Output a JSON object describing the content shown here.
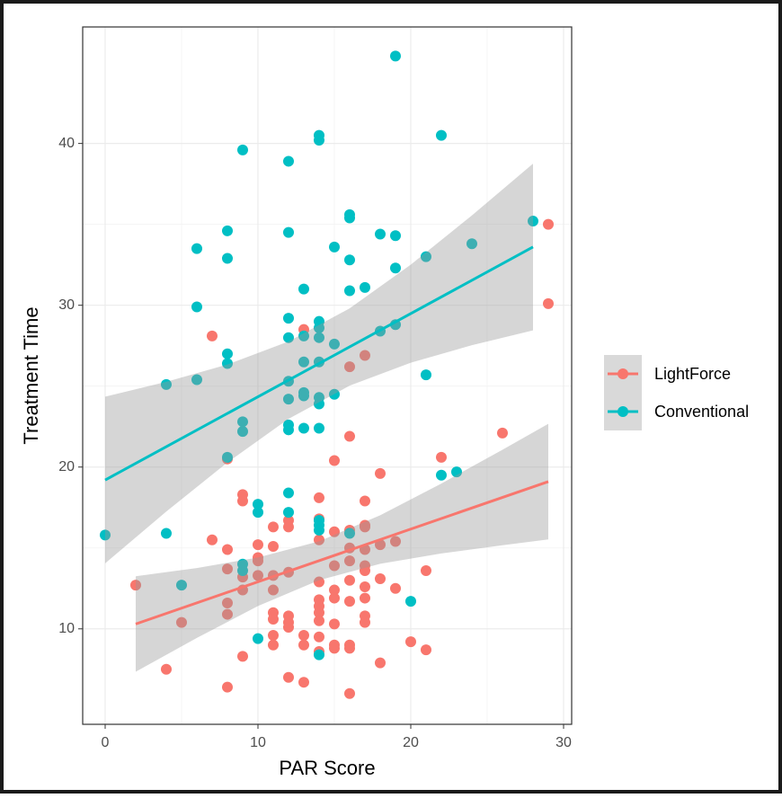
{
  "chart_data": {
    "type": "scatter",
    "x_label": "PAR Score",
    "y_label": "Treatment Time",
    "xlim": [
      -1.47,
      30.53
    ],
    "ylim": [
      4.1,
      47.2
    ],
    "xticks": [
      0,
      10,
      20,
      30
    ],
    "yticks": [
      10,
      20,
      30,
      40
    ],
    "grid": true,
    "legend_position": "right",
    "series": [
      {
        "name": "LightForce",
        "color": "#F8766D",
        "x": [
          2,
          4,
          5,
          7,
          7,
          8,
          8,
          8,
          8,
          8,
          8,
          9,
          9,
          9,
          9,
          9,
          10,
          10,
          10,
          10,
          11,
          11,
          11,
          11,
          11,
          11,
          11,
          11,
          12,
          12,
          12,
          12,
          12,
          12,
          12,
          13,
          13,
          13,
          13,
          14,
          14,
          14,
          14,
          14,
          14,
          14,
          14,
          14,
          14,
          15,
          15,
          15,
          15,
          15,
          15,
          15,
          15,
          16,
          16,
          16,
          16,
          16,
          16,
          16,
          16,
          16,
          16,
          17,
          17,
          17,
          17,
          17,
          17,
          17,
          17,
          17,
          17,
          17,
          18,
          18,
          18,
          18,
          19,
          19,
          20,
          21,
          21,
          22,
          26,
          29,
          29
        ],
        "y": [
          12.7,
          7.5,
          10.4,
          28.1,
          15.5,
          20.5,
          14.9,
          13.7,
          11.6,
          10.9,
          6.4,
          18.3,
          17.9,
          13.2,
          12.4,
          8.3,
          15.2,
          14.4,
          13.3,
          14.2,
          16.3,
          15.1,
          13.3,
          12.4,
          11.0,
          10.6,
          9.6,
          9.0,
          16.7,
          16.3,
          13.5,
          10.8,
          10.4,
          10.1,
          7.0,
          28.5,
          9.6,
          9.0,
          6.7,
          18.1,
          16.8,
          15.5,
          12.9,
          11.8,
          11.4,
          11.0,
          10.5,
          9.5,
          8.6,
          20.4,
          16.0,
          13.9,
          12.4,
          11.9,
          10.3,
          9.0,
          8.8,
          26.2,
          21.9,
          16.1,
          15.0,
          14.2,
          13.0,
          11.7,
          9.0,
          8.8,
          6.0,
          26.9,
          17.9,
          16.4,
          16.3,
          14.9,
          13.9,
          13.6,
          12.6,
          11.9,
          10.8,
          10.4,
          19.6,
          15.2,
          13.1,
          7.9,
          15.4,
          12.5,
          9.2,
          13.6,
          8.7,
          20.6,
          22.1,
          35.0,
          30.1
        ],
        "fit_x": [
          2,
          29
        ],
        "fit_y": [
          10.3,
          19.1
        ],
        "band_x": [
          2,
          6,
          10,
          14,
          18,
          22,
          26,
          29
        ],
        "band_lower": [
          7.35,
          9.44,
          11.41,
          13.01,
          14.02,
          14.66,
          15.17,
          15.53
        ],
        "band_upper": [
          13.25,
          13.76,
          14.41,
          15.41,
          17.02,
          18.98,
          21.07,
          22.67
        ]
      },
      {
        "name": "Conventional",
        "color": "#00BFC4",
        "x": [
          0,
          4,
          4,
          5,
          6,
          6,
          6,
          8,
          8,
          8,
          8,
          8,
          9,
          9,
          9,
          9,
          9,
          10,
          10,
          10,
          12,
          12,
          12,
          12,
          12,
          12,
          12,
          12,
          12,
          12,
          13,
          13,
          13,
          13,
          13,
          13,
          14,
          14,
          14,
          14,
          14,
          14,
          14,
          14,
          14,
          14,
          14,
          14,
          14,
          15,
          15,
          15,
          16,
          16,
          16,
          16,
          16,
          17,
          18,
          18,
          19,
          19,
          19,
          19,
          20,
          21,
          21,
          22,
          22,
          23,
          24,
          28
        ],
        "y": [
          15.8,
          15.9,
          25.1,
          12.7,
          33.5,
          29.9,
          25.4,
          34.6,
          32.9,
          27.0,
          26.4,
          20.6,
          39.6,
          22.8,
          22.2,
          14.0,
          13.6,
          17.7,
          17.2,
          9.4,
          38.9,
          34.5,
          29.2,
          28.0,
          25.3,
          24.2,
          22.6,
          22.3,
          18.4,
          17.2,
          31.0,
          28.1,
          26.5,
          24.6,
          24.4,
          22.4,
          40.5,
          40.2,
          29.0,
          28.6,
          28.0,
          26.5,
          24.3,
          23.9,
          22.4,
          16.7,
          16.4,
          16.1,
          8.4,
          33.6,
          27.6,
          24.5,
          35.6,
          35.4,
          32.8,
          30.9,
          15.9,
          31.1,
          34.4,
          28.4,
          45.4,
          34.3,
          32.3,
          28.8,
          11.7,
          33.0,
          25.7,
          40.5,
          19.5,
          19.7,
          33.8,
          35.2
        ],
        "fit_x": [
          0,
          28
        ],
        "fit_y": [
          19.2,
          33.6
        ],
        "band_x": [
          0,
          4,
          8,
          12,
          16,
          20,
          24,
          28
        ],
        "band_lower": [
          14.05,
          17.25,
          20.28,
          22.98,
          25.03,
          26.45,
          27.53,
          28.45
        ],
        "band_upper": [
          24.35,
          25.27,
          26.34,
          27.76,
          29.81,
          32.51,
          35.55,
          38.75
        ]
      }
    ]
  }
}
